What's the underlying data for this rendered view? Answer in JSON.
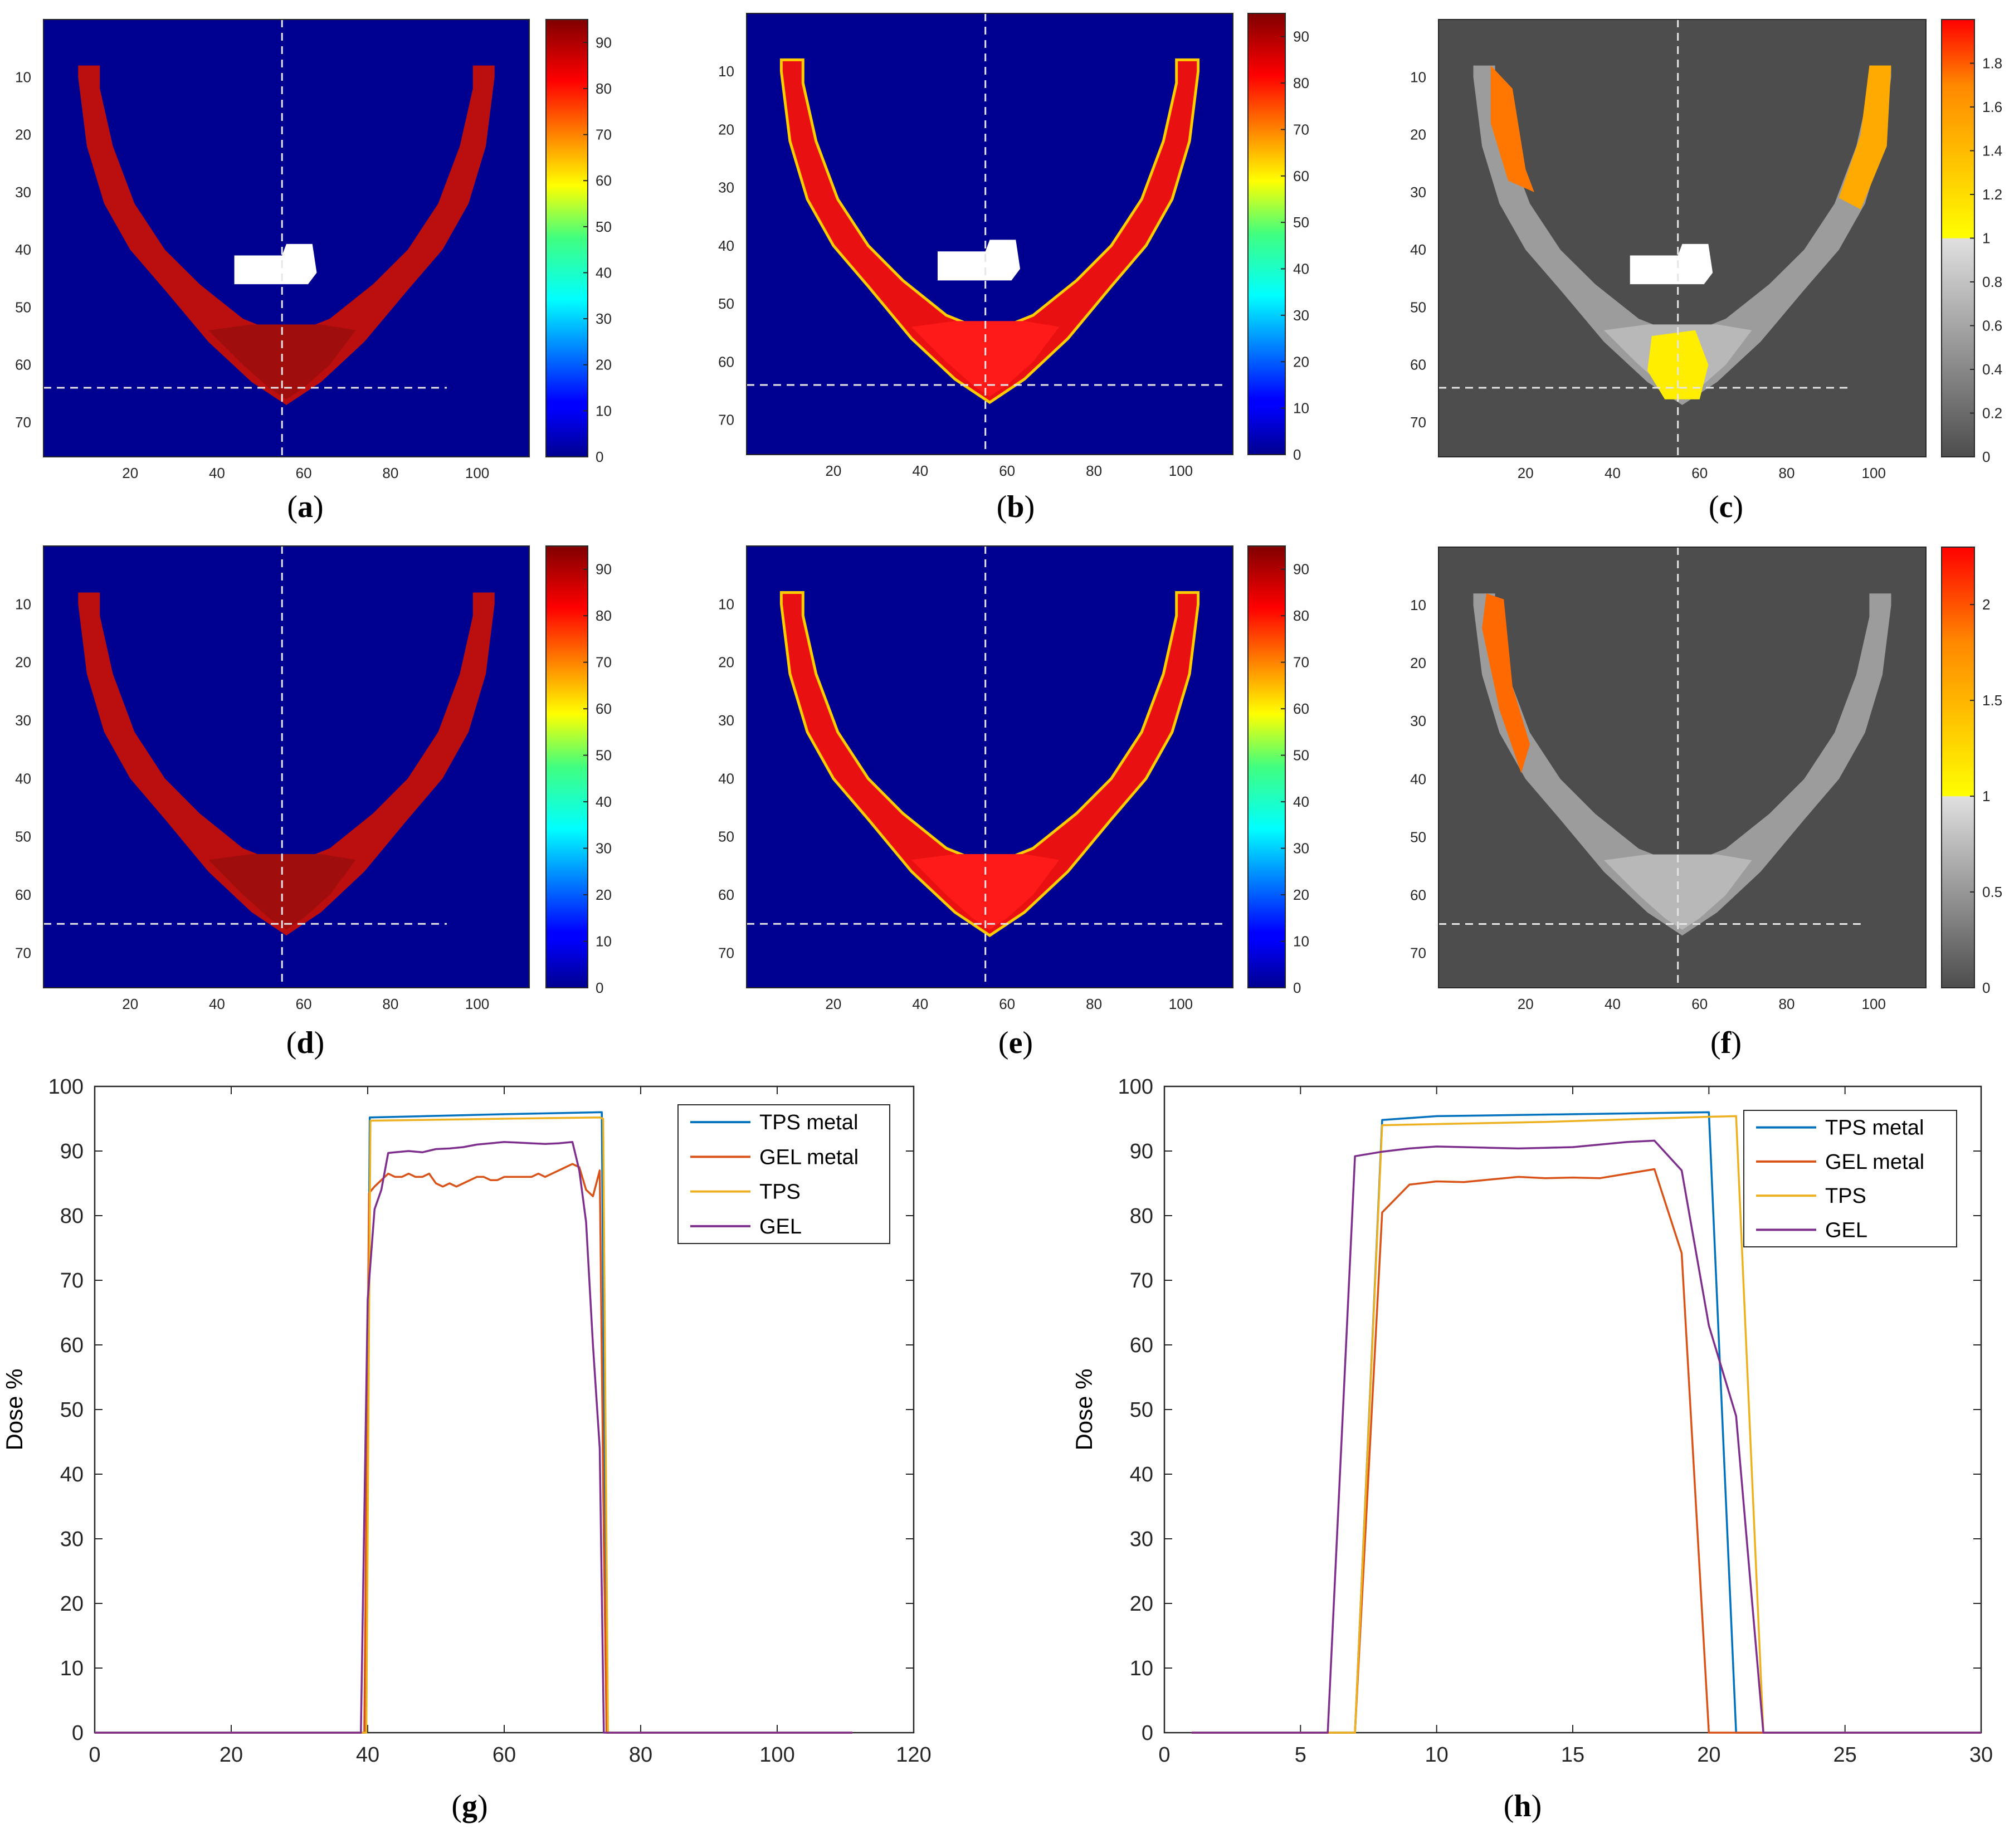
{
  "heatmaps": [
    {
      "id": "a",
      "caption": "a",
      "type": "dose",
      "colormap": "jet",
      "cbar_ticks": [
        "0",
        "10",
        "20",
        "30",
        "40",
        "50",
        "60",
        "70",
        "80",
        "90"
      ],
      "cbar_max": 95,
      "has_metal": true,
      "yline": 64,
      "yline_end": 93,
      "hot_zone": "none"
    },
    {
      "id": "b",
      "caption": "b",
      "type": "dose",
      "colormap": "jet",
      "cbar_ticks": [
        "0",
        "10",
        "20",
        "30",
        "40",
        "50",
        "60",
        "70",
        "80",
        "90"
      ],
      "cbar_max": 95,
      "has_metal": true,
      "yline": 64,
      "yline_end": 110,
      "hot_zone": "none"
    },
    {
      "id": "c",
      "caption": "c",
      "type": "ratio",
      "colormap": "gray-hot",
      "cbar_ticks": [
        "0",
        "0.2",
        "0.4",
        "0.6",
        "0.8",
        "1",
        "1.2",
        "1.4",
        "1.6",
        "1.8"
      ],
      "cbar_max": 2.0,
      "has_metal": true,
      "yline": 64,
      "yline_end": 95,
      "hot_zone": "c"
    },
    {
      "id": "d",
      "caption": "d",
      "type": "dose",
      "colormap": "jet",
      "cbar_ticks": [
        "0",
        "10",
        "20",
        "30",
        "40",
        "50",
        "60",
        "70",
        "80",
        "90"
      ],
      "cbar_max": 95,
      "has_metal": false,
      "yline": 65,
      "yline_end": 93,
      "hot_zone": "none"
    },
    {
      "id": "e",
      "caption": "e",
      "type": "dose",
      "colormap": "jet",
      "cbar_ticks": [
        "0",
        "10",
        "20",
        "30",
        "40",
        "50",
        "60",
        "70",
        "80",
        "90"
      ],
      "cbar_max": 95,
      "has_metal": false,
      "yline": 65,
      "yline_end": 110,
      "hot_zone": "none"
    },
    {
      "id": "f",
      "caption": "f",
      "type": "ratio",
      "colormap": "gray-hot",
      "cbar_ticks": [
        "0",
        "0.5",
        "1",
        "1.5",
        "2"
      ],
      "cbar_max": 2.3,
      "has_metal": false,
      "yline": 65,
      "yline_end": 97,
      "hot_zone": "f"
    }
  ],
  "heatmap_axes": {
    "x_ticks": [
      "20",
      "40",
      "60",
      "80",
      "100"
    ],
    "y_ticks": [
      "10",
      "20",
      "30",
      "40",
      "50",
      "60",
      "70"
    ],
    "xlim": [
      0,
      112
    ],
    "ylim": [
      0,
      76
    ],
    "vline_x": 55
  },
  "chart_data": [
    {
      "type": "line",
      "caption": "g",
      "ylabel": "Dose %",
      "xlim": [
        0,
        120
      ],
      "ylim": [
        0,
        100
      ],
      "x_ticks": [
        "0",
        "20",
        "40",
        "60",
        "80",
        "100",
        "120"
      ],
      "y_ticks": [
        "0",
        "10",
        "20",
        "30",
        "40",
        "50",
        "60",
        "70",
        "80",
        "90",
        "100"
      ],
      "series": [
        {
          "name": "TPS metal",
          "color": "#0072BD",
          "x": [
            0,
            39.7,
            40.3,
            60,
            74,
            74.3,
            75,
            111
          ],
          "y": [
            0,
            0,
            95.2,
            95.7,
            96,
            96,
            0,
            0
          ]
        },
        {
          "name": "GEL metal",
          "color": "#D95319",
          "x": [
            0,
            39.5,
            40.2,
            41,
            42,
            43,
            44,
            45,
            46,
            47,
            48,
            49,
            50,
            51,
            52,
            53,
            54,
            55,
            56,
            57,
            58,
            59,
            60,
            61,
            62,
            63,
            64,
            65,
            66,
            67,
            68,
            69,
            70,
            71,
            72,
            73,
            74,
            74.6,
            75,
            111
          ],
          "y": [
            0,
            0,
            83.5,
            84.5,
            85.5,
            86.5,
            86,
            86,
            86.5,
            86,
            86,
            86.5,
            85,
            84.5,
            85,
            84.5,
            85,
            85.5,
            86,
            86,
            85.5,
            85.5,
            86,
            86,
            86,
            86,
            86,
            86.5,
            86,
            86.5,
            87,
            87.5,
            88,
            87.5,
            84,
            83,
            87,
            30,
            0,
            0
          ]
        },
        {
          "name": "TPS",
          "color": "#EDB120",
          "x": [
            0,
            39.8,
            40.4,
            60,
            74,
            74.5,
            75.2,
            111
          ],
          "y": [
            0,
            0,
            94.7,
            95,
            95.2,
            95,
            0,
            0
          ]
        },
        {
          "name": "GEL",
          "color": "#7E2F8E",
          "x": [
            0,
            39,
            40,
            41,
            42,
            43,
            44,
            46,
            48,
            50,
            52,
            54,
            56,
            58,
            60,
            62,
            64,
            66,
            68,
            70,
            71,
            72,
            73,
            74,
            74.6,
            111
          ],
          "y": [
            0,
            0,
            67,
            81,
            84,
            89.7,
            89.8,
            90,
            89.8,
            90.3,
            90.4,
            90.6,
            91,
            91.2,
            91.4,
            91.3,
            91.2,
            91.1,
            91.2,
            91.4,
            87,
            79,
            60,
            44,
            0,
            0
          ]
        }
      ]
    },
    {
      "type": "line",
      "caption": "h",
      "ylabel": "Dose %",
      "xlim": [
        0,
        30
      ],
      "ylim": [
        0,
        100
      ],
      "x_ticks": [
        "0",
        "5",
        "10",
        "15",
        "20",
        "25",
        "30"
      ],
      "y_ticks": [
        "0",
        "10",
        "20",
        "30",
        "40",
        "50",
        "60",
        "70",
        "80",
        "90",
        "100"
      ],
      "series": [
        {
          "name": "TPS metal",
          "color": "#0072BD",
          "x": [
            1,
            7,
            8,
            10,
            15,
            20,
            21,
            30
          ],
          "y": [
            0,
            0,
            94.8,
            95.4,
            95.7,
            96,
            0,
            0
          ]
        },
        {
          "name": "GEL metal",
          "color": "#D95319",
          "x": [
            1,
            7,
            8,
            9,
            10,
            11,
            12,
            13,
            14,
            15,
            16,
            17,
            18,
            19,
            20,
            30
          ],
          "y": [
            0,
            0,
            80.5,
            84.8,
            85.3,
            85.2,
            85.6,
            86,
            85.8,
            85.9,
            85.8,
            86.5,
            87.2,
            74.2,
            0,
            0
          ]
        },
        {
          "name": "TPS",
          "color": "#EDB120",
          "x": [
            1,
            7,
            8,
            14,
            20,
            21,
            22,
            30
          ],
          "y": [
            0,
            0,
            94,
            94.5,
            95.3,
            95.4,
            0,
            0
          ]
        },
        {
          "name": "GEL",
          "color": "#7E2F8E",
          "x": [
            1,
            6,
            7,
            8,
            9,
            10,
            11,
            12,
            13,
            14,
            15,
            16,
            17,
            18,
            19,
            20,
            21,
            22,
            30
          ],
          "y": [
            0,
            0,
            89.2,
            89.9,
            90.4,
            90.7,
            90.6,
            90.5,
            90.4,
            90.5,
            90.6,
            91,
            91.4,
            91.6,
            87,
            63,
            49,
            0,
            0
          ]
        }
      ]
    }
  ]
}
